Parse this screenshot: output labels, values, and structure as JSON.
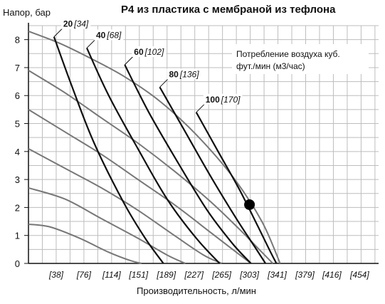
{
  "chart_data": {
    "type": "line",
    "title": "P4 из пластика с мембраной из тефлона",
    "ylabel": "Напор, бар",
    "xlabel": "Производительность, л/мин",
    "note": [
      "Потребление воздуха куб.",
      "фут./мин (м3/час)"
    ],
    "xlim": [
      0,
      480
    ],
    "ylim": [
      0,
      8.5
    ],
    "x_ticks": [
      "[38]",
      "[76]",
      "[114]",
      "[151]",
      "[189]",
      "[227]",
      "[265]",
      "[303]",
      "[341]",
      "[379]",
      "[416]",
      "[454]"
    ],
    "x_tick_values": [
      38,
      76,
      114,
      151,
      189,
      227,
      265,
      303,
      341,
      379,
      416,
      454
    ],
    "y_ticks": [
      "0",
      "1",
      "2",
      "3",
      "4",
      "5",
      "6",
      "7",
      "8"
    ],
    "y_tick_values": [
      0,
      1,
      2,
      3,
      4,
      5,
      6,
      7,
      8
    ],
    "grid": true,
    "point_color": "#000000",
    "performance_curves": [
      {
        "label": "",
        "color": "#777777",
        "x": [
          0,
          40,
          80,
          130,
          180,
          230,
          280,
          320,
          345
        ],
        "y": [
          8.3,
          7.9,
          7.4,
          6.7,
          5.8,
          4.6,
          3.1,
          1.5,
          0
        ]
      },
      {
        "label": "",
        "color": "#777777",
        "x": [
          0,
          50,
          100,
          150,
          200,
          250,
          290,
          320,
          335
        ],
        "y": [
          6.9,
          6.1,
          5.2,
          4.3,
          3.3,
          2.2,
          1.2,
          0.4,
          0
        ]
      },
      {
        "label": "",
        "color": "#777777",
        "x": [
          0,
          50,
          100,
          150,
          200,
          250,
          285,
          305
        ],
        "y": [
          5.5,
          4.7,
          3.9,
          3.0,
          2.1,
          1.1,
          0.4,
          0
        ]
      },
      {
        "label": "",
        "color": "#777777",
        "x": [
          0,
          50,
          100,
          150,
          200,
          240,
          265
        ],
        "y": [
          4.1,
          3.4,
          2.7,
          1.9,
          1.0,
          0.3,
          0
        ]
      },
      {
        "label": "",
        "color": "#777777",
        "x": [
          0,
          50,
          100,
          150,
          190,
          215
        ],
        "y": [
          2.7,
          2.3,
          1.6,
          0.9,
          0.3,
          0
        ]
      },
      {
        "label": "",
        "color": "#777777",
        "x": [
          0,
          30,
          70,
          110,
          140,
          155
        ],
        "y": [
          1.4,
          1.3,
          0.9,
          0.4,
          0.1,
          0
        ]
      }
    ],
    "air_curves": [
      {
        "label": "20",
        "label_metric": "[34]",
        "color": "#111111",
        "x": [
          35,
          60,
          90,
          130,
          160,
          185
        ],
        "y": [
          8.1,
          6.3,
          4.3,
          2.2,
          0.9,
          0
        ]
      },
      {
        "label": "40",
        "label_metric": "[68]",
        "color": "#111111",
        "x": [
          80,
          110,
          150,
          190,
          230,
          262
        ],
        "y": [
          7.7,
          6.0,
          4.1,
          2.3,
          0.9,
          0
        ]
      },
      {
        "label": "60",
        "label_metric": "[102]",
        "color": "#111111",
        "x": [
          132,
          165,
          205,
          245,
          280,
          305
        ],
        "y": [
          7.1,
          5.4,
          3.6,
          1.9,
          0.7,
          0
        ]
      },
      {
        "label": "80",
        "label_metric": "[136]",
        "color": "#111111",
        "x": [
          180,
          215,
          250,
          285,
          310,
          325
        ],
        "y": [
          6.3,
          4.7,
          3.1,
          1.6,
          0.6,
          0
        ]
      },
      {
        "label": "100",
        "label_metric": "[170]",
        "color": "#111111",
        "x": [
          230,
          260,
          290,
          315,
          332,
          340
        ],
        "y": [
          5.4,
          4.0,
          2.6,
          1.3,
          0.4,
          0
        ]
      }
    ],
    "operating_point": {
      "x": 303,
      "y": 2.1
    }
  }
}
